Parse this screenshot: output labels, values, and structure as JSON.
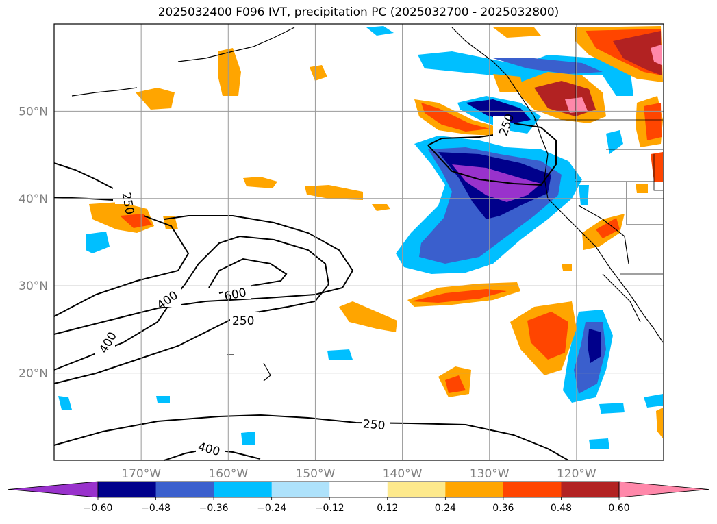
{
  "title": "2025032400 F096 IVT, precipitation PC (2025032700 - 2025032800)",
  "map": {
    "lon_range": [
      -180,
      -110
    ],
    "lat_range": [
      10,
      60
    ],
    "lat_ticks": [
      {
        "value": 50,
        "label": "50°N"
      },
      {
        "value": 40,
        "label": "40°N"
      },
      {
        "value": 30,
        "label": "30°N"
      },
      {
        "value": 20,
        "label": "20°N"
      }
    ],
    "lon_ticks": [
      {
        "value": -170,
        "label": "170°W"
      },
      {
        "value": -160,
        "label": "160°W"
      },
      {
        "value": -150,
        "label": "150°W"
      },
      {
        "value": -140,
        "label": "140°W"
      },
      {
        "value": -130,
        "label": "130°W"
      },
      {
        "value": -120,
        "label": "120°W"
      }
    ],
    "grid": true,
    "contour_labels": [
      "250",
      "250",
      "400",
      "600",
      "250",
      "400",
      "250",
      "400"
    ]
  },
  "colorbar": {
    "ticks": [
      "−0.60",
      "−0.48",
      "−0.36",
      "−0.24",
      "−0.12",
      "0.12",
      "0.24",
      "0.36",
      "0.48",
      "0.60"
    ],
    "colors": [
      "#9932cc",
      "#00008b",
      "#3a5fcd",
      "#00bfff",
      "#aee2fb",
      "#ffffff",
      "#fde98c",
      "#ffa500",
      "#ff4500",
      "#b22222",
      "#ff88aa"
    ]
  }
}
